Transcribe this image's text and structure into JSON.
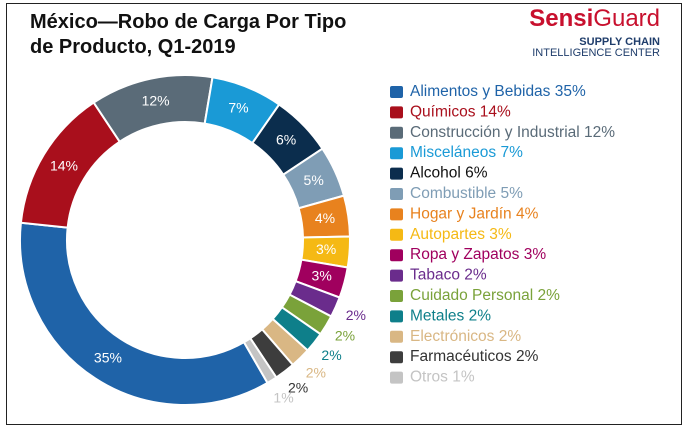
{
  "chart_data": {
    "type": "donut",
    "title": "México—Robo de Carga Por Tipo de Producto, Q1-2019",
    "logo": {
      "brand_1": "Sensi",
      "brand_2": "Guard",
      "line_1": "SUPPLY CHAIN",
      "line_2": "INTELLIGENCE CENTER"
    },
    "categories": [
      "Alimentos y Bebidas",
      "Químicos",
      "Construcción y Industrial",
      "Misceláneos",
      "Alcohol",
      "Combustible",
      "Hogar y Jardín",
      "Autopartes",
      "Ropa y Zapatos",
      "Tabaco",
      "Cuidado Personal",
      "Metales",
      "Electrónicos",
      "Farmacéuticos",
      "Otros"
    ],
    "values": [
      35,
      14,
      12,
      7,
      6,
      5,
      4,
      3,
      3,
      2,
      2,
      2,
      2,
      2,
      1
    ],
    "value_labels": [
      "35%",
      "14%",
      "12%",
      "7%",
      "6%",
      "5%",
      "4%",
      "3%",
      "3%",
      "2%",
      "2%",
      "2%",
      "2%",
      "2%",
      "1%"
    ],
    "colors": [
      "#1f63a8",
      "#a90f1c",
      "#5a6b78",
      "#1a9ad6",
      "#0b2d4d",
      "#7f9db5",
      "#e8821e",
      "#f5b914",
      "#a0005e",
      "#6a2c8c",
      "#7aa23a",
      "#0e7f8a",
      "#d9b784",
      "#3d3d3d",
      "#c4c4c4"
    ],
    "legend_colors": [
      "#1f63a8",
      "#a90f1c",
      "#5a6b78",
      "#1a9ad6",
      "#111111",
      "#7f9db5",
      "#e8821e",
      "#f5b914",
      "#a0005e",
      "#6a2c8c",
      "#7aa23a",
      "#0e7f8a",
      "#d9b784",
      "#333333",
      "#c4c4c4"
    ]
  }
}
